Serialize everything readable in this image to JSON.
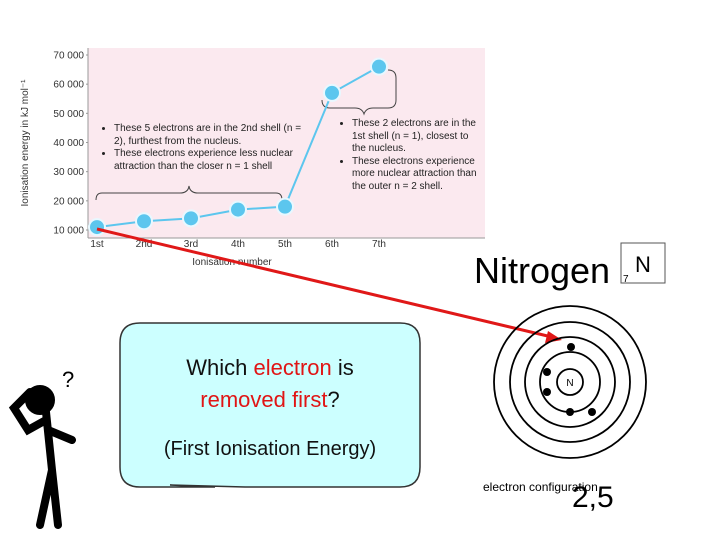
{
  "chart_data": {
    "type": "line",
    "y_label": "Ionisation energy in kJ mol⁻¹",
    "x_label": "Ionisation number",
    "categories": [
      "1st",
      "2nd",
      "3rd",
      "4th",
      "5th",
      "6th",
      "7th"
    ],
    "values": [
      11000,
      13000,
      14000,
      17000,
      18000,
      57000,
      66000
    ],
    "color": "#5cc6ee",
    "ylim": [
      10000,
      70000
    ],
    "yticks": [
      {
        "value": 10000,
        "label": "10 000"
      },
      {
        "value": 20000,
        "label": "20 000"
      },
      {
        "value": 30000,
        "label": "30 000"
      },
      {
        "value": 40000,
        "label": "40 000"
      },
      {
        "value": 50000,
        "label": "50 000"
      },
      {
        "value": 60000,
        "label": "60 000"
      },
      {
        "value": 70000,
        "label": "70 000"
      }
    ],
    "annotations": [
      [
        "These 5 electrons are in the 2nd shell (n = 2), furthest from the nucleus.",
        "These electrons experience less nuclear attraction than the closer n = 1 shell"
      ],
      [
        "These 2 electrons are in the 1st shell (n = 1), closest to the nucleus.",
        "These electrons experience more nuclear attraction than the outer n = 2 shell."
      ]
    ]
  },
  "element": {
    "name": "Nitrogen",
    "number": "7",
    "symbol": "N"
  },
  "atom": {
    "nucleus": "N",
    "caption": "electron configuration",
    "configuration": "2,5"
  },
  "bubble": {
    "question": [
      "Which",
      "electron",
      "is",
      "removed first",
      "?"
    ],
    "note": "(First Ionisation Energy)"
  },
  "figure": {
    "mark": "?"
  }
}
